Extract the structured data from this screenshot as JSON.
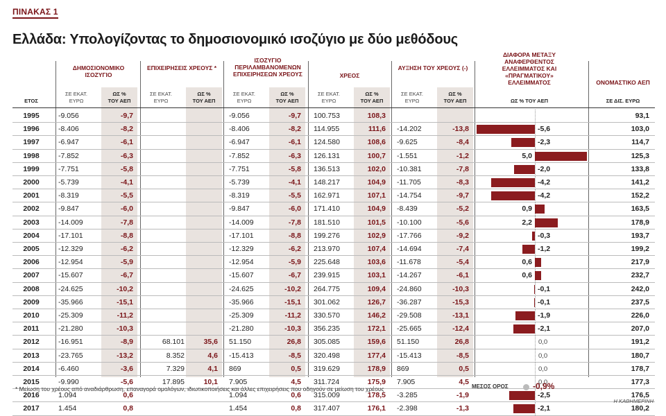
{
  "tag": "ΠΙΝΑΚΑΣ 1",
  "title": "Ελλάδα: Υπολογίζοντας το δημοσιονομικό ισοζύγιο με δύο μεθόδους",
  "headers": {
    "year": "ΕΤΟΣ",
    "deficit": "ΔΗΜΟΣΙΟΝΟΜΙΚΟ ΙΣΟΖΥΓΙΟ",
    "debt_ops": "ΕΠΙΧΕΙΡΗΣΕΙΣ ΧΡΕΟΥΣ *",
    "balance_incl": "ΙΣΟΖΥΓΙΟ ΠΕΡΙΛΑΜΒΑΝΟΜΕΝΩΝ ΕΠΙΧΕΙΡΗΣΕΩΝ ΧΡΕΟΥΣ",
    "debt": "ΧΡΕΟΣ",
    "debt_increase": "ΑΥΞΗΣΗ ΤΟΥ ΧΡΕΟΥΣ (-)",
    "difference": "ΔΙΑΦΟΡΑ ΜΕΤΑΞΥ ΑΝΑΦΕΡΘΕΝΤΟΣ ΕΛΛΕΙΜΜΑΤΟΣ ΚΑΙ «ΠΡΑΓΜΑΤΙΚΟΥ» ΕΛΛΕΙΜΜΑΤΟΣ",
    "nominal_gdp": "ΟΝΟΜΑΣΤΙΚΟ ΑΕΠ",
    "sub_mil_1": "ΣΕ ΕΚΑΤ.",
    "sub_mil_2": "ΕΥΡΩ",
    "sub_pct_1": "ΩΣ %",
    "sub_pct_2": "ΤΟΥ ΑΕΠ",
    "sub_diff": "ΩΣ % ΤΟΥ ΑΕΠ",
    "sub_gdp": "ΣΕ ΔΙΣ. ΕΥΡΩ"
  },
  "rows": [
    {
      "year": "1995",
      "d_mil": "-9.056",
      "d_pct": "-9,7",
      "o_mil": "",
      "o_pct": "",
      "b_mil": "-9.056",
      "b_pct": "-9,7",
      "debt_mil": "100.753",
      "debt_pct": "108,3",
      "inc_mil": "",
      "inc_pct": "",
      "diff": null,
      "diff_label": "",
      "gdp": "93,1"
    },
    {
      "year": "1996",
      "d_mil": "-8.406",
      "d_pct": "-8,2",
      "o_mil": "",
      "o_pct": "",
      "b_mil": "-8.406",
      "b_pct": "-8,2",
      "debt_mil": "114.955",
      "debt_pct": "111,6",
      "inc_mil": "-14.202",
      "inc_pct": "-13,8",
      "diff": -5.6,
      "diff_label": "-5,6",
      "gdp": "103,0"
    },
    {
      "year": "1997",
      "d_mil": "-6.947",
      "d_pct": "-6,1",
      "o_mil": "",
      "o_pct": "",
      "b_mil": "-6.947",
      "b_pct": "-6,1",
      "debt_mil": "124.580",
      "debt_pct": "108,6",
      "inc_mil": "-9.625",
      "inc_pct": "-8,4",
      "diff": -2.3,
      "diff_label": "-2,3",
      "gdp": "114,7"
    },
    {
      "year": "1998",
      "d_mil": "-7.852",
      "d_pct": "-6,3",
      "o_mil": "",
      "o_pct": "",
      "b_mil": "-7.852",
      "b_pct": "-6,3",
      "debt_mil": "126.131",
      "debt_pct": "100,7",
      "inc_mil": "-1.551",
      "inc_pct": "-1,2",
      "diff": 5.0,
      "diff_label": "5,0",
      "gdp": "125,3"
    },
    {
      "year": "1999",
      "d_mil": "-7.751",
      "d_pct": "-5,8",
      "o_mil": "",
      "o_pct": "",
      "b_mil": "-7.751",
      "b_pct": "-5,8",
      "debt_mil": "136.513",
      "debt_pct": "102,0",
      "inc_mil": "-10.381",
      "inc_pct": "-7,8",
      "diff": -2.0,
      "diff_label": "-2,0",
      "gdp": "133,8"
    },
    {
      "year": "2000",
      "d_mil": "-5.739",
      "d_pct": "-4,1",
      "o_mil": "",
      "o_pct": "",
      "b_mil": "-5.739",
      "b_pct": "-4,1",
      "debt_mil": "148.217",
      "debt_pct": "104,9",
      "inc_mil": "-11.705",
      "inc_pct": "-8,3",
      "diff": -4.2,
      "diff_label": "-4,2",
      "gdp": "141,2"
    },
    {
      "year": "2001",
      "d_mil": "-8.319",
      "d_pct": "-5,5",
      "o_mil": "",
      "o_pct": "",
      "b_mil": "-8.319",
      "b_pct": "-5,5",
      "debt_mil": "162.971",
      "debt_pct": "107,1",
      "inc_mil": "-14.754",
      "inc_pct": "-9,7",
      "diff": -4.2,
      "diff_label": "-4,2",
      "gdp": "152,2"
    },
    {
      "year": "2002",
      "d_mil": "-9.847",
      "d_pct": "-6,0",
      "o_mil": "",
      "o_pct": "",
      "b_mil": "-9.847",
      "b_pct": "-6,0",
      "debt_mil": "171.410",
      "debt_pct": "104,9",
      "inc_mil": "-8.439",
      "inc_pct": "-5,2",
      "diff": 0.9,
      "diff_label": "0,9",
      "gdp": "163,5"
    },
    {
      "year": "2003",
      "d_mil": "-14.009",
      "d_pct": "-7,8",
      "o_mil": "",
      "o_pct": "",
      "b_mil": "-14.009",
      "b_pct": "-7,8",
      "debt_mil": "181.510",
      "debt_pct": "101,5",
      "inc_mil": "-10.100",
      "inc_pct": "-5,6",
      "diff": 2.2,
      "diff_label": "2,2",
      "gdp": "178,9"
    },
    {
      "year": "2004",
      "d_mil": "-17.101",
      "d_pct": "-8,8",
      "o_mil": "",
      "o_pct": "",
      "b_mil": "-17.101",
      "b_pct": "-8,8",
      "debt_mil": "199.276",
      "debt_pct": "102,9",
      "inc_mil": "-17.766",
      "inc_pct": "-9,2",
      "diff": -0.3,
      "diff_label": "-0,3",
      "gdp": "193,7"
    },
    {
      "year": "2005",
      "d_mil": "-12.329",
      "d_pct": "-6,2",
      "o_mil": "",
      "o_pct": "",
      "b_mil": "-12.329",
      "b_pct": "-6,2",
      "debt_mil": "213.970",
      "debt_pct": "107,4",
      "inc_mil": "-14.694",
      "inc_pct": "-7,4",
      "diff": -1.2,
      "diff_label": "-1,2",
      "gdp": "199,2"
    },
    {
      "year": "2006",
      "d_mil": "-12.954",
      "d_pct": "-5,9",
      "o_mil": "",
      "o_pct": "",
      "b_mil": "-12.954",
      "b_pct": "-5,9",
      "debt_mil": "225.648",
      "debt_pct": "103,6",
      "inc_mil": "-11.678",
      "inc_pct": "-5,4",
      "diff": 0.6,
      "diff_label": "0,6",
      "gdp": "217,9"
    },
    {
      "year": "2007",
      "d_mil": "-15.607",
      "d_pct": "-6,7",
      "o_mil": "",
      "o_pct": "",
      "b_mil": "-15.607",
      "b_pct": "-6,7",
      "debt_mil": "239.915",
      "debt_pct": "103,1",
      "inc_mil": "-14.267",
      "inc_pct": "-6,1",
      "diff": 0.6,
      "diff_label": "0,6",
      "gdp": "232,7"
    },
    {
      "year": "2008",
      "d_mil": "-24.625",
      "d_pct": "-10,2",
      "o_mil": "",
      "o_pct": "",
      "b_mil": "-24.625",
      "b_pct": "-10,2",
      "debt_mil": "264.775",
      "debt_pct": "109,4",
      "inc_mil": "-24.860",
      "inc_pct": "-10,3",
      "diff": -0.1,
      "diff_label": "-0,1",
      "gdp": "242,0"
    },
    {
      "year": "2009",
      "d_mil": "-35.966",
      "d_pct": "-15,1",
      "o_mil": "",
      "o_pct": "",
      "b_mil": "-35.966",
      "b_pct": "-15,1",
      "debt_mil": "301.062",
      "debt_pct": "126,7",
      "inc_mil": "-36.287",
      "inc_pct": "-15,3",
      "diff": -0.1,
      "diff_label": "-0,1",
      "gdp": "237,5"
    },
    {
      "year": "2010",
      "d_mil": "-25.309",
      "d_pct": "-11,2",
      "o_mil": "",
      "o_pct": "",
      "b_mil": "-25.309",
      "b_pct": "-11,2",
      "debt_mil": "330.570",
      "debt_pct": "146,2",
      "inc_mil": "-29.508",
      "inc_pct": "-13,1",
      "diff": -1.9,
      "diff_label": "-1,9",
      "gdp": "226,0"
    },
    {
      "year": "2011",
      "d_mil": "-21.280",
      "d_pct": "-10,3",
      "o_mil": "",
      "o_pct": "",
      "b_mil": "-21.280",
      "b_pct": "-10,3",
      "debt_mil": "356.235",
      "debt_pct": "172,1",
      "inc_mil": "-25.665",
      "inc_pct": "-12,4",
      "diff": -2.1,
      "diff_label": "-2,1",
      "gdp": "207,0"
    },
    {
      "year": "2012",
      "d_mil": "-16.951",
      "d_pct": "-8,9",
      "o_mil": "68.101",
      "o_pct": "35,6",
      "b_mil": "51.150",
      "b_pct": "26,8",
      "debt_mil": "305.085",
      "debt_pct": "159,6",
      "inc_mil": "51.150",
      "inc_pct": "26,8",
      "diff": 0.0,
      "diff_label": "0,0",
      "gdp": "191,2"
    },
    {
      "year": "2013",
      "d_mil": "-23.765",
      "d_pct": "-13,2",
      "o_mil": "8.352",
      "o_pct": "4,6",
      "b_mil": "-15.413",
      "b_pct": "-8,5",
      "debt_mil": "320.498",
      "debt_pct": "177,4",
      "inc_mil": "-15.413",
      "inc_pct": "-8,5",
      "diff": 0.0,
      "diff_label": "0,0",
      "gdp": "180,7"
    },
    {
      "year": "2014",
      "d_mil": "-6.460",
      "d_pct": "-3,6",
      "o_mil": "7.329",
      "o_pct": "4,1",
      "b_mil": "869",
      "b_pct": "0,5",
      "debt_mil": "319.629",
      "debt_pct": "178,9",
      "inc_mil": "869",
      "inc_pct": "0,5",
      "diff": 0.0,
      "diff_label": "0,0",
      "gdp": "178,7"
    },
    {
      "year": "2015",
      "d_mil": "-9.990",
      "d_pct": "-5,6",
      "o_mil": "17.895",
      "o_pct": "10,1",
      "b_mil": "7.905",
      "b_pct": "4,5",
      "debt_mil": "311.724",
      "debt_pct": "175,9",
      "inc_mil": "7.905",
      "inc_pct": "4,5",
      "diff": 0.0,
      "diff_label": "0,0",
      "gdp": "177,3"
    },
    {
      "year": "2016",
      "d_mil": "1.094",
      "d_pct": "0,6",
      "o_mil": "",
      "o_pct": "",
      "b_mil": "1.094",
      "b_pct": "0,6",
      "debt_mil": "315.009",
      "debt_pct": "178,5",
      "inc_mil": "-3.285",
      "inc_pct": "-1,9",
      "diff": -2.5,
      "diff_label": "-2,5",
      "gdp": "176,5"
    },
    {
      "year": "2017",
      "d_mil": "1.454",
      "d_pct": "0,8",
      "o_mil": "",
      "o_pct": "",
      "b_mil": "1.454",
      "b_pct": "0,8",
      "debt_mil": "317.407",
      "debt_pct": "176,1",
      "inc_mil": "-2.398",
      "inc_pct": "-1,3",
      "diff": -2.1,
      "diff_label": "-2,1",
      "gdp": "180,2"
    }
  ],
  "footnote": "* Μείωση του χρέους από αναδιάρθρωση, επαναγορά ομολόγων, ιδιωτικοποιήσεις και άλλες επιχειρήσεις που οδηγούν σε μείωση του χρέους",
  "mean_label": "ΜΕΣΟΣ ΟΡΟΣ",
  "mean_value": "-0,9%",
  "credit": "Η ΚΑΘΗΜΕΡΙΝΗ",
  "colors": {
    "accent": "#7a1418",
    "bar": "#8b1c1f",
    "shade": "#e9e3df"
  }
}
